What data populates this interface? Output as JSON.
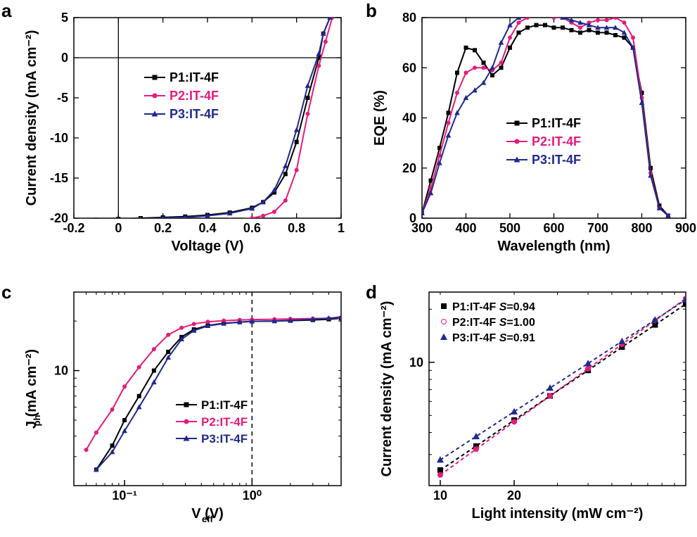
{
  "labels": {
    "a": "a",
    "b": "b",
    "c": "c",
    "d": "d"
  },
  "colors": {
    "axis": "#000000",
    "grid": "#000000",
    "bg": "#ffffff",
    "p1": "#000000",
    "p2": "#e61b7b",
    "p3": "#20298c"
  },
  "fonts": {
    "axis_label": 20,
    "tick": 16,
    "legend": 18,
    "panel_label": 26
  },
  "panel_a": {
    "type": "line",
    "xlabel": "Voltage (V)",
    "ylabel": "Current density (mA cm⁻²)",
    "xlim": [
      -0.2,
      1.0
    ],
    "ylim": [
      -20,
      5
    ],
    "xticks": [
      -0.2,
      0.0,
      0.2,
      0.4,
      0.6,
      0.8,
      1.0
    ],
    "yticks": [
      -20,
      -15,
      -10,
      -5,
      0,
      5
    ],
    "zero_lines": true,
    "legend": [
      {
        "label": "P1:IT-4F",
        "color": "#000000",
        "marker": "square"
      },
      {
        "label": "P2:IT-4F",
        "color": "#e61b7b",
        "marker": "circle"
      },
      {
        "label": "P3:IT-4F",
        "color": "#20298c",
        "marker": "triangle"
      }
    ],
    "series": {
      "P1": {
        "color": "#000000",
        "marker": "square",
        "x": [
          -0.2,
          -0.1,
          0.0,
          0.1,
          0.2,
          0.3,
          0.4,
          0.5,
          0.6,
          0.65,
          0.7,
          0.75,
          0.8,
          0.85,
          0.9,
          0.92,
          0.95
        ],
        "y": [
          -20.3,
          -20.2,
          -20.1,
          -20.0,
          -19.9,
          -19.8,
          -19.6,
          -19.3,
          -18.7,
          -18.0,
          -16.8,
          -14.5,
          -10.5,
          -5.0,
          0.0,
          3.0,
          5.0
        ]
      },
      "P2": {
        "color": "#e61b7b",
        "marker": "circle",
        "x": [
          -0.2,
          -0.1,
          0.0,
          0.1,
          0.2,
          0.3,
          0.4,
          0.5,
          0.6,
          0.65,
          0.7,
          0.75,
          0.8,
          0.85,
          0.9,
          0.93,
          0.96
        ],
        "y": [
          -20.7,
          -20.6,
          -20.6,
          -20.5,
          -20.5,
          -20.4,
          -20.3,
          -20.2,
          -20.0,
          -19.7,
          -19.2,
          -17.8,
          -14.0,
          -7.0,
          -1.0,
          2.0,
          5.0
        ]
      },
      "P3": {
        "color": "#20298c",
        "marker": "triangle",
        "x": [
          -0.2,
          -0.1,
          0.0,
          0.1,
          0.2,
          0.3,
          0.4,
          0.5,
          0.6,
          0.65,
          0.7,
          0.75,
          0.8,
          0.85,
          0.9,
          0.92,
          0.95
        ],
        "y": [
          -20.4,
          -20.3,
          -20.2,
          -20.1,
          -20.0,
          -19.9,
          -19.7,
          -19.4,
          -18.8,
          -18.0,
          -16.5,
          -13.5,
          -9.0,
          -3.5,
          0.5,
          3.0,
          5.0
        ]
      }
    },
    "line_width": 2,
    "marker_size": 5
  },
  "panel_b": {
    "type": "line",
    "xlabel": "Wavelength (nm)",
    "ylabel": "EQE (%)",
    "xlim": [
      300,
      900
    ],
    "ylim": [
      0,
      80
    ],
    "xticks": [
      300,
      400,
      500,
      600,
      700,
      800,
      900
    ],
    "yticks": [
      0,
      20,
      40,
      60,
      80
    ],
    "legend": [
      {
        "label": "P1:IT-4F",
        "color": "#000000",
        "marker": "square"
      },
      {
        "label": "P2:IT-4F",
        "color": "#e61b7b",
        "marker": "circle"
      },
      {
        "label": "P3:IT-4F",
        "color": "#20298c",
        "marker": "triangle"
      }
    ],
    "series": {
      "P1": {
        "color": "#000000",
        "marker": "square",
        "x": [
          300,
          320,
          340,
          360,
          380,
          400,
          420,
          440,
          460,
          480,
          500,
          520,
          540,
          560,
          580,
          600,
          620,
          640,
          660,
          680,
          700,
          720,
          740,
          760,
          780,
          800,
          820,
          840,
          860
        ],
        "y": [
          2,
          15,
          28,
          42,
          58,
          68,
          67,
          62,
          57,
          60,
          68,
          74,
          76,
          77,
          77,
          76,
          76,
          75,
          74,
          75,
          74,
          74,
          73,
          72,
          68,
          50,
          20,
          5,
          1
        ]
      },
      "P2": {
        "color": "#e61b7b",
        "marker": "circle",
        "x": [
          300,
          320,
          340,
          360,
          380,
          400,
          420,
          440,
          460,
          480,
          500,
          520,
          540,
          560,
          580,
          600,
          620,
          640,
          660,
          680,
          700,
          720,
          740,
          760,
          780,
          800,
          820,
          840,
          860
        ],
        "y": [
          2,
          12,
          25,
          38,
          50,
          58,
          60,
          60,
          59,
          62,
          72,
          78,
          80,
          81,
          81,
          80,
          80,
          78,
          76,
          78,
          79,
          79,
          80,
          78,
          72,
          48,
          18,
          4,
          1
        ]
      },
      "P3": {
        "color": "#20298c",
        "marker": "triangle",
        "x": [
          300,
          320,
          340,
          360,
          380,
          400,
          420,
          440,
          460,
          480,
          500,
          520,
          540,
          560,
          580,
          600,
          620,
          640,
          660,
          680,
          700,
          720,
          740,
          760,
          780,
          800,
          820,
          840,
          860
        ],
        "y": [
          2,
          10,
          22,
          33,
          42,
          48,
          51,
          54,
          60,
          70,
          77,
          80,
          81,
          81,
          82,
          81,
          80,
          79,
          78,
          77,
          76,
          76,
          76,
          74,
          68,
          46,
          17,
          4,
          1
        ]
      }
    },
    "line_width": 2,
    "marker_size": 5
  },
  "panel_c": {
    "type": "line-loglog",
    "xlabel": "V_eff (V)",
    "ylabel": "J_ph (mA cm⁻²)",
    "xlabel_html": "V<sub>eff</sub> (V)",
    "ylabel_html": "J<sub>ph</sub> (mA cm⁻²)",
    "xlim": [
      0.04,
      5
    ],
    "ylim": [
      2,
      30
    ],
    "xticks_major": [
      0.1,
      1
    ],
    "xtick_labels": [
      "10⁻¹",
      "10⁰"
    ],
    "yticks_major": [
      10
    ],
    "ytick_labels": [
      "10"
    ],
    "vline_dash_at": 1.0,
    "legend": [
      {
        "label": "P1:IT-4F",
        "color": "#000000",
        "marker": "square"
      },
      {
        "label": "P2:IT-4F",
        "color": "#e61b7b",
        "marker": "circle"
      },
      {
        "label": "P3:IT-4F",
        "color": "#20298c",
        "marker": "triangle"
      }
    ],
    "series": {
      "P1": {
        "color": "#000000",
        "marker": "square",
        "x": [
          0.06,
          0.08,
          0.1,
          0.13,
          0.17,
          0.22,
          0.28,
          0.35,
          0.45,
          0.6,
          0.8,
          1.0,
          1.5,
          2.0,
          3.0,
          4.0,
          5.0
        ],
        "y": [
          2.5,
          3.5,
          5.0,
          7.0,
          10.0,
          13.0,
          16.0,
          17.8,
          18.8,
          19.4,
          19.7,
          19.9,
          20.0,
          20.1,
          20.3,
          20.5,
          20.8
        ]
      },
      "P2": {
        "color": "#e61b7b",
        "marker": "circle",
        "x": [
          0.05,
          0.06,
          0.08,
          0.1,
          0.13,
          0.17,
          0.22,
          0.28,
          0.35,
          0.45,
          0.6,
          0.8,
          1.0,
          1.5,
          2.0,
          3.0,
          4.0,
          5.0
        ],
        "y": [
          3.3,
          4.2,
          5.8,
          8.0,
          10.5,
          13.5,
          16.5,
          18.2,
          19.2,
          19.8,
          20.1,
          20.3,
          20.4,
          20.5,
          20.6,
          20.7,
          20.8,
          21.0
        ]
      },
      "P3": {
        "color": "#20298c",
        "marker": "triangle",
        "x": [
          0.06,
          0.08,
          0.1,
          0.13,
          0.17,
          0.22,
          0.28,
          0.35,
          0.45,
          0.6,
          0.8,
          1.0,
          1.5,
          2.0,
          3.0,
          4.0,
          5.0
        ],
        "y": [
          2.5,
          3.2,
          4.3,
          6.0,
          8.5,
          12.0,
          15.5,
          17.5,
          18.7,
          19.3,
          19.7,
          19.9,
          20.0,
          20.2,
          20.5,
          20.8,
          21.2
        ]
      }
    },
    "line_width": 2,
    "marker_size": 5
  },
  "panel_d": {
    "type": "line-loglog",
    "xlabel": "Light intensity (mW cm⁻²)",
    "ylabel": "Current density (mA cm⁻²)",
    "xlim": [
      9,
      100
    ],
    "ylim": [
      2,
      25
    ],
    "xticks_major": [
      10,
      20
    ],
    "xtick_labels": [
      "10",
      "20"
    ],
    "yticks_major": [
      10
    ],
    "ytick_labels": [
      "10"
    ],
    "legend": [
      {
        "label": "P1:IT-4F",
        "slope": "S=0.94",
        "color": "#000000",
        "marker": "square"
      },
      {
        "label": "P2:IT-4F",
        "slope": "S=1.00",
        "color": "#e61b7b",
        "marker": "circle"
      },
      {
        "label": "P3:IT-4F",
        "slope": "S=0.91",
        "color": "#20298c",
        "marker": "triangle"
      }
    ],
    "dash": "5,4",
    "series": {
      "P1": {
        "color": "#000000",
        "marker": "square",
        "S": 0.94,
        "x": [
          10,
          14,
          20,
          28,
          40,
          55,
          75,
          100
        ],
        "y": [
          2.45,
          3.35,
          4.7,
          6.45,
          9.0,
          12.2,
          16.3,
          21.4
        ]
      },
      "P2": {
        "color": "#e61b7b",
        "marker": "circle",
        "S": 1.0,
        "x": [
          10,
          14,
          20,
          28,
          40,
          55,
          75,
          100
        ],
        "y": [
          2.3,
          3.22,
          4.6,
          6.44,
          9.2,
          12.65,
          17.25,
          23.0
        ]
      },
      "P3": {
        "color": "#20298c",
        "marker": "triangle",
        "S": 0.91,
        "x": [
          10,
          14,
          20,
          28,
          40,
          55,
          75,
          100
        ],
        "y": [
          2.8,
          3.8,
          5.25,
          7.15,
          9.85,
          13.15,
          17.4,
          22.65
        ]
      }
    },
    "line_width": 2,
    "marker_size": 7
  }
}
